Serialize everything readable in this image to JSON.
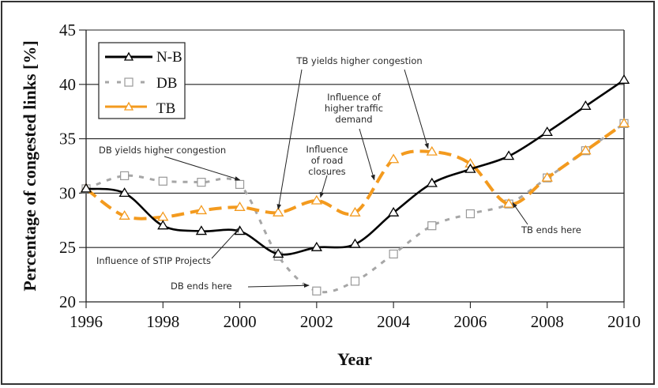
{
  "chart_data": {
    "type": "line",
    "title": "",
    "xlabel": "Year",
    "ylabel": "Percentage of congested links [%]",
    "xlim": [
      1996,
      2010
    ],
    "ylim": [
      20,
      45
    ],
    "x_ticks": [
      "1996",
      "1998",
      "2000",
      "2002",
      "2004",
      "2006",
      "2008",
      "2010"
    ],
    "y_ticks": [
      "20",
      "25",
      "30",
      "35",
      "40",
      "45"
    ],
    "grid": "horizontal",
    "legend_position": "top-left",
    "x": [
      1996,
      1997,
      1998,
      1999,
      2000,
      2001,
      2002,
      2003,
      2004,
      2005,
      2006,
      2007,
      2008,
      2009,
      2010
    ],
    "series": [
      {
        "name": "N-B",
        "color": "#000000",
        "style": "solid",
        "marker": "triangle",
        "values": [
          30.4,
          30.0,
          27.0,
          26.5,
          26.5,
          24.4,
          25.0,
          25.3,
          28.2,
          30.9,
          32.2,
          33.4,
          35.6,
          38.0,
          40.4
        ]
      },
      {
        "name": "DB",
        "color": "#a6a6a6",
        "style": "dotted",
        "marker": "square",
        "values": [
          30.4,
          31.6,
          31.1,
          31.0,
          30.8,
          24.2,
          21.0,
          21.9,
          24.4,
          27.0,
          28.1,
          29.0,
          31.4,
          33.9,
          36.4
        ]
      },
      {
        "name": "TB",
        "color": "#f39a1e",
        "style": "dashed",
        "marker": "triangle",
        "values": [
          30.4,
          27.9,
          27.8,
          28.4,
          28.7,
          28.2,
          29.3,
          28.2,
          33.1,
          33.8,
          32.7,
          29.0,
          31.4,
          33.9,
          36.4
        ]
      }
    ],
    "annotations": [
      {
        "lines": [
          "DB yields higher congestion"
        ],
        "target": [
          2000.0,
          31.0
        ]
      },
      {
        "lines": [
          "Influence of STIP Projects"
        ],
        "target": [
          2000.0,
          26.6
        ]
      },
      {
        "lines": [
          "DB ends here"
        ],
        "target": [
          2001.8,
          21.3
        ]
      },
      {
        "lines": [
          "TB yields higher congestion"
        ],
        "target": [
          2001.0,
          28.3
        ]
      },
      {
        "lines": [
          "TB yields higher congestion"
        ],
        "target": [
          2004.9,
          33.9
        ]
      },
      {
        "lines": [
          "Influence",
          "of road",
          "closures"
        ],
        "target": [
          2002.1,
          29.4
        ]
      },
      {
        "lines": [
          "Influence of",
          "higher traffic",
          "demand"
        ],
        "target": [
          2003.5,
          31.0
        ]
      },
      {
        "lines": [
          "TB ends here"
        ],
        "target": [
          2007.1,
          28.9
        ]
      }
    ]
  }
}
